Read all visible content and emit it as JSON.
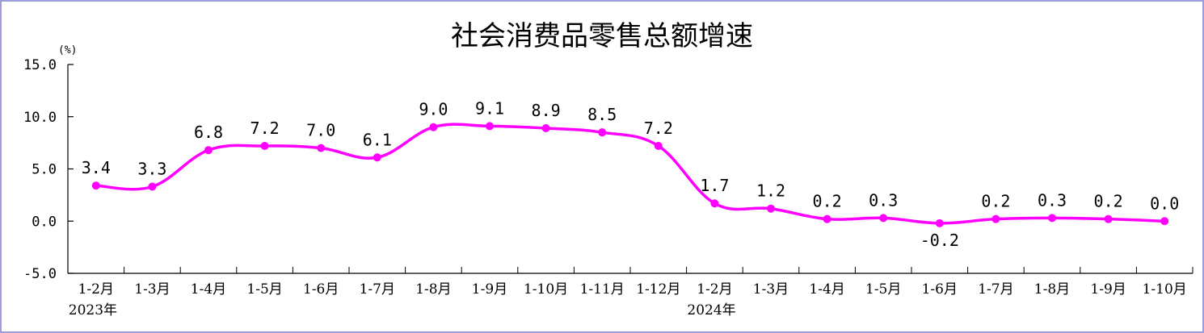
{
  "chart_data": {
    "type": "line",
    "title": "社会消费品零售总额增速",
    "unit_label": "(%)",
    "ylim": [
      -5.0,
      15.0
    ],
    "y_ticks": [
      "15.0",
      "10.0",
      "5.0",
      "0.0",
      "-5.0"
    ],
    "y_tick_values": [
      15,
      10,
      5,
      0,
      -5
    ],
    "categories": [
      "1-2月",
      "1-3月",
      "1-4月",
      "1-5月",
      "1-6月",
      "1-7月",
      "1-8月",
      "1-9月",
      "1-10月",
      "1-11月",
      "1-12月",
      "1-2月",
      "1-3月",
      "1-4月",
      "1-5月",
      "1-6月",
      "1-7月",
      "1-8月",
      "1-9月",
      "1-10月"
    ],
    "year_labels": [
      {
        "label": "2023年",
        "category_index": 0
      },
      {
        "label": "2024年",
        "category_index": 11
      }
    ],
    "series": [
      {
        "values": [
          3.4,
          3.3,
          6.8,
          7.2,
          7.0,
          6.1,
          9.0,
          9.1,
          8.9,
          8.5,
          7.2,
          1.7,
          1.2,
          0.2,
          0.3,
          -0.2,
          0.2,
          0.3,
          0.2,
          0.0
        ],
        "value_labels": [
          "3.4",
          "3.3",
          "6.8",
          "7.2",
          "7.0",
          "6.1",
          "9.0",
          "9.1",
          "8.9",
          "8.5",
          "7.2",
          "1.7",
          "1.2",
          "0.2",
          "0.3",
          "-0.2",
          "0.2",
          "0.3",
          "0.2",
          "0.0"
        ],
        "color": "#ff00ff"
      }
    ],
    "grid": false,
    "legend": "none"
  }
}
